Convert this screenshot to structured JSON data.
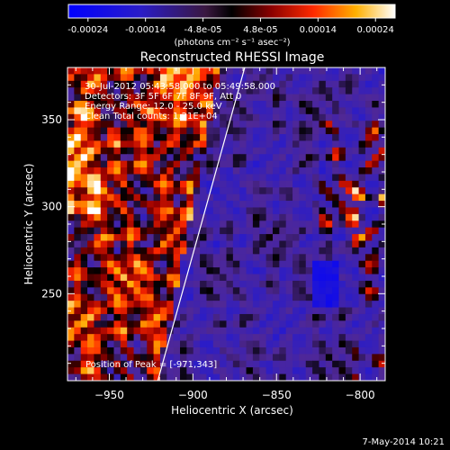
{
  "chart_data": {
    "type": "heatmap",
    "title": "Reconstructed RHESSI Image",
    "xlabel": "Heliocentric X (arcsec)",
    "ylabel": "Heliocentric Y (arcsec)",
    "xlim": [
      -975,
      -785
    ],
    "ylim": [
      200,
      380
    ],
    "x_ticks": [
      -950,
      -900,
      -850,
      -800
    ],
    "y_ticks": [
      250,
      300,
      350
    ],
    "colorbar": {
      "ticks": [
        "-0.00024",
        "-0.00014",
        "-4.8e-05",
        "4.8e-05",
        "0.00014",
        "0.00024"
      ],
      "units": "(photons cm⁻² s⁻¹ asec⁻²)",
      "range": [
        -0.00024,
        0.00024
      ]
    },
    "annotations": [
      "30-Jul-2012 05:43:58.000 to 05:49:58.000",
      "Detectors: 3F 5F 6F 7F 8F 9F, Att 0",
      "Energy Range: 12.0 - 25.0 keV",
      "Clean     Total counts: 1.21E+04"
    ],
    "peak_label": "Position of Peak = [-971,343]",
    "peak": [
      -971,
      343
    ],
    "limb_line": [
      [
        -921,
        200
      ],
      [
        -869,
        380
      ]
    ],
    "grid": false
  },
  "footer": {
    "date": "7-May-2014 10:21"
  },
  "colors": {
    "background": "#000000",
    "text": "#ffffff"
  }
}
